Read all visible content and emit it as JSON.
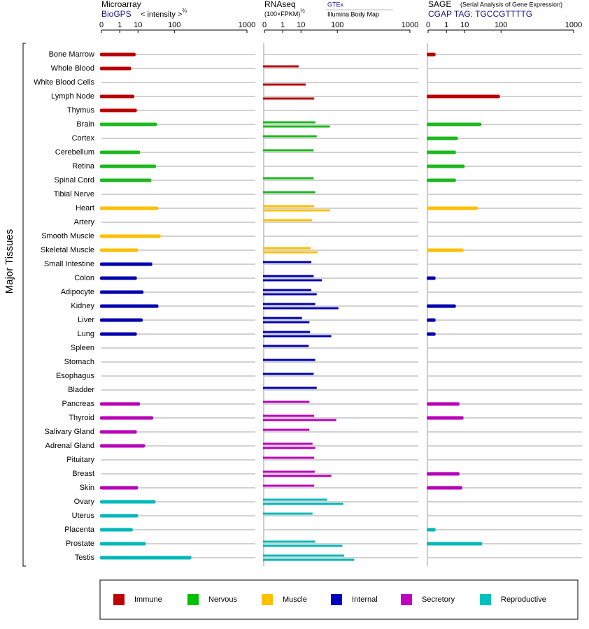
{
  "chart_data": {
    "type": "bar",
    "y_label": "Major Tissues",
    "categories": [
      "Bone Marrow",
      "Whole Blood",
      "White Blood Cells",
      "Lymph Node",
      "Thymus",
      "Brain",
      "Cortex",
      "Cerebellum",
      "Retina",
      "Spinal Cord",
      "Tibial Nerve",
      "Heart",
      "Artery",
      "Smooth Muscle",
      "Skeletal Muscle",
      "Small Intestine",
      "Colon",
      "Adipocyte",
      "Kidney",
      "Liver",
      "Lung",
      "Spleen",
      "Stomach",
      "Esophagus",
      "Bladder",
      "Pancreas",
      "Thyroid",
      "Salivary Gland",
      "Adrenal Gland",
      "Pituitary",
      "Breast",
      "Skin",
      "Ovary",
      "Uterus",
      "Placenta",
      "Prostate",
      "Testis"
    ],
    "colors": [
      "#b80000",
      "#b80000",
      "#b80000",
      "#b80000",
      "#b80000",
      "#1cb81c",
      "#1cb81c",
      "#1cb81c",
      "#1cb81c",
      "#1cb81c",
      "#1cb81c",
      "#ffbf00",
      "#ffbf00",
      "#ffbf00",
      "#ffbf00",
      "#0000b0",
      "#0000b0",
      "#0000b0",
      "#0000b0",
      "#0000b0",
      "#0000b0",
      "#0000b0",
      "#0000b0",
      "#0000b0",
      "#0000b0",
      "#b800b8",
      "#b800b8",
      "#b800b8",
      "#b800b8",
      "#b800b8",
      "#b800b8",
      "#b800b8",
      "#00b8b8",
      "#00b8b8",
      "#00b8b8",
      "#00b8b8",
      "#00b8b8"
    ],
    "panels": [
      {
        "title": "Microarray",
        "subtitle": "BioGPS",
        "axis_label": "< intensity >",
        "axis_label_exponent": "⅔",
        "xlim": [
          0,
          1000
        ],
        "xticks": [
          0,
          1,
          10,
          100,
          1000
        ],
        "series": [
          {
            "values": [
              8,
              5,
              null,
              7,
              9,
              40,
              null,
              12,
              38,
              28,
              null,
              44,
              null,
              50,
              10,
              30,
              9,
              16,
              44,
              15,
              9,
              null,
              null,
              null,
              null,
              12,
              32,
              9,
              18,
              null,
              null,
              10,
              37,
              10,
              6,
              19,
              200
            ]
          }
        ]
      },
      {
        "title": "RNAseq",
        "axis_label": "(100×FPKM)",
        "axis_label_exponent": "½",
        "xlim": [
          0,
          1000
        ],
        "xticks": [
          0,
          1,
          10,
          100,
          1000
        ],
        "series": [
          {
            "name": "GTEx",
            "values": [
              null,
              8,
              null,
              null,
              null,
              30,
              33,
              27,
              null,
              27,
              30,
              28,
              24,
              null,
              22,
              23,
              27,
              23,
              30,
              11,
              21,
              19,
              30,
              27,
              33,
              20,
              28,
              20,
              25,
              28,
              29,
              28,
              60,
              25,
              null,
              30,
              135
            ]
          },
          {
            "name": "Illumina Body Map",
            "values": [
              null,
              null,
              15,
              28,
              null,
              70,
              null,
              null,
              null,
              null,
              null,
              70,
              null,
              null,
              35,
              null,
              45,
              33,
              105,
              20,
              75,
              null,
              null,
              null,
              null,
              null,
              95,
              null,
              30,
              null,
              75,
              null,
              130,
              null,
              null,
              125,
              200
            ]
          }
        ]
      },
      {
        "title": "SAGE",
        "note": "(Serial Analysis of Gene Expression)",
        "subtitle": "CGAP TAG: TGCCGTTTTG",
        "xlim": [
          0,
          1000
        ],
        "xticks": [
          0,
          1,
          10,
          100,
          1000
        ],
        "series": [
          {
            "values": [
              0.05,
              null,
              null,
              95,
              null,
              35,
              5,
              4,
              10,
              4,
              null,
              28,
              null,
              null,
              9,
              null,
              0.05,
              null,
              4,
              0.05,
              0.05,
              null,
              null,
              null,
              null,
              6,
              9,
              null,
              null,
              null,
              6,
              8,
              null,
              null,
              0.05,
              37,
              null
            ]
          }
        ]
      }
    ],
    "legend": [
      {
        "name": "Immune",
        "color": "#c00000"
      },
      {
        "name": "Nervous",
        "color": "#00c000"
      },
      {
        "name": "Muscle",
        "color": "#ffc000"
      },
      {
        "name": "Internal",
        "color": "#0000c0"
      },
      {
        "name": "Secretory",
        "color": "#c000c0"
      },
      {
        "name": "Reproductive",
        "color": "#00c0c0"
      }
    ]
  }
}
